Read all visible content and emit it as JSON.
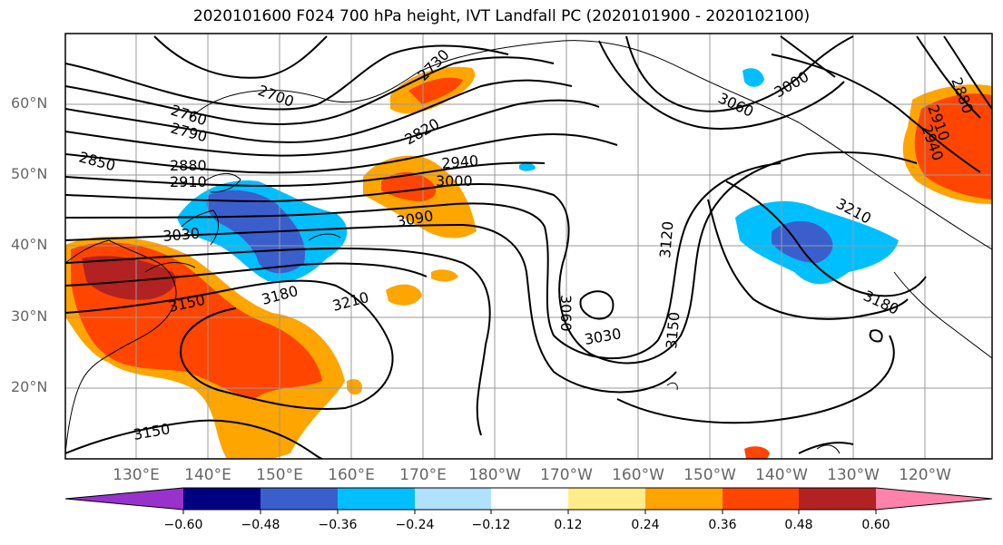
{
  "title": "2020101600 F024 700 hPa height, IVT Landfall PC (2020101900 - 2020102100)",
  "lat_labels": [
    "60°N",
    "50°N",
    "40°N",
    "30°N",
    "20°N"
  ],
  "lon_labels": [
    "130°E",
    "140°E",
    "150°E",
    "160°E",
    "170°E",
    "180°W",
    "170°W",
    "160°W",
    "150°W",
    "140°W",
    "130°W",
    "120°W"
  ],
  "colorbar": {
    "ticks": [
      "−0.60",
      "−0.48",
      "−0.36",
      "−0.24",
      "−0.12",
      "0.12",
      "0.24",
      "0.36",
      "0.48",
      "0.60"
    ],
    "colors": [
      "#9932cc",
      "#000080",
      "#3a5fcd",
      "#00bfff",
      "#b0e2ff",
      "#ffffff",
      "#ffec8b",
      "#ffa500",
      "#ff4500",
      "#b22222",
      "#ff82ab"
    ]
  },
  "contour_labels": [
    "2700",
    "2730",
    "2760",
    "2790",
    "2820",
    "2850",
    "2880",
    "2910",
    "2940",
    "3000",
    "3000",
    "3030",
    "3030",
    "3060",
    "3060",
    "3090",
    "3120",
    "3150",
    "3150",
    "3150",
    "3180",
    "3180",
    "3210",
    "3210",
    "2880",
    "2910",
    "2940"
  ]
}
